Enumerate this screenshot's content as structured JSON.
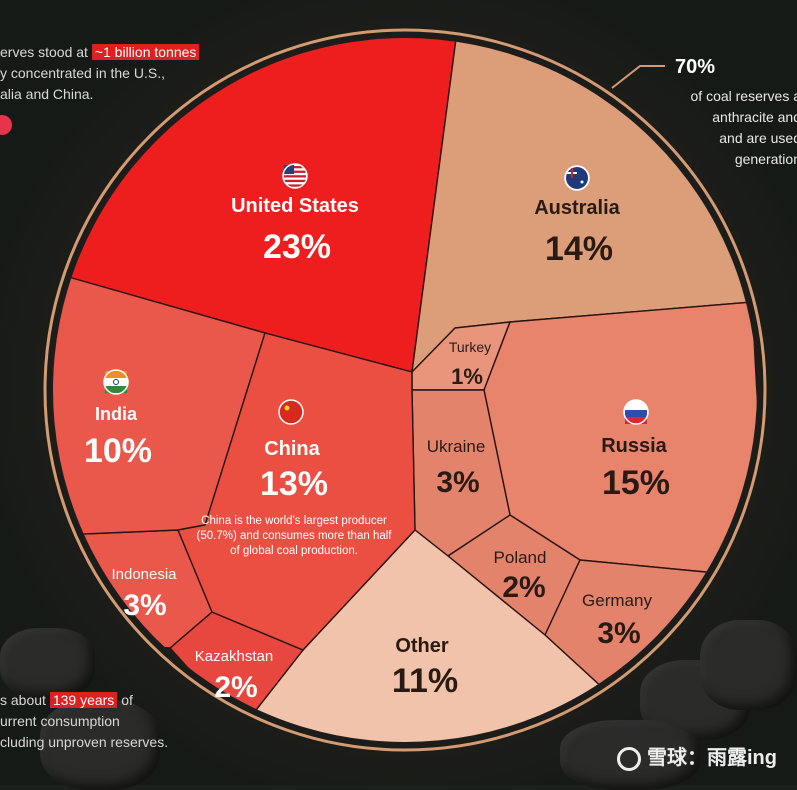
{
  "chart_data": {
    "type": "voronoi-treemap",
    "title": "",
    "categories": [
      "United States",
      "Australia",
      "Turkey",
      "Russia",
      "Ukraine",
      "Poland",
      "Germany",
      "Other",
      "Kazakhstan",
      "Indonesia",
      "India",
      "China"
    ],
    "values": [
      23,
      14,
      1,
      15,
      3,
      2,
      3,
      11,
      2,
      3,
      10,
      13
    ],
    "unit": "%",
    "labels": [
      {
        "name": "United States",
        "pct": "23%"
      },
      {
        "name": "Australia",
        "pct": "14%"
      },
      {
        "name": "Turkey",
        "pct": "1%"
      },
      {
        "name": "Russia",
        "pct": "15%"
      },
      {
        "name": "Ukraine",
        "pct": "3%"
      },
      {
        "name": "Poland",
        "pct": "2%"
      },
      {
        "name": "Germany",
        "pct": "3%"
      },
      {
        "name": "Other",
        "pct": "11%"
      },
      {
        "name": "Kazakhstan",
        "pct": "2%"
      },
      {
        "name": "Indonesia",
        "pct": "3%"
      },
      {
        "name": "India",
        "pct": "10%"
      },
      {
        "name": "China",
        "pct": "13%"
      }
    ],
    "colors": {
      "United States": "#ee1e1e",
      "Australia": "#dc9e78",
      "Turkey": "#e8957c",
      "Russia": "#e8836c",
      "Ukraine": "#e4836c",
      "Poland": "#e4836c",
      "Germany": "#e4836c",
      "Other": "#f1c3aa",
      "Kazakhstan": "#e7473f",
      "Indonesia": "#e9584a",
      "India": "#e9584a",
      "China": "#ea4f42"
    },
    "flags": {
      "United States": "us-flag-icon",
      "Australia": "australia-flag-icon",
      "Russia": "russia-flag-icon",
      "India": "india-flag-icon",
      "China": "china-flag-icon"
    },
    "china_note": [
      "China is the world's largest producer",
      "(50.7%) and consumes more than half",
      "of global coal production."
    ]
  },
  "notes": {
    "top_left": {
      "line1_pre": "erves stood at ",
      "line1_hl": "~1 billion tonnes",
      "line2": "y concentrated in the U.S.,",
      "line3": "alia and China."
    },
    "bottom_left": {
      "line1_pre": "s about ",
      "line1_hl": "139 years",
      "line1_post": " of",
      "line2": "urrent consumption",
      "line3": "cluding unproven reserves."
    },
    "callout": {
      "pct": "70%",
      "line1": "of coal reserves a",
      "line2": "anthracite and",
      "line3": "and are used",
      "line4": "generation"
    }
  },
  "watermark": "雪球：雨露ing"
}
